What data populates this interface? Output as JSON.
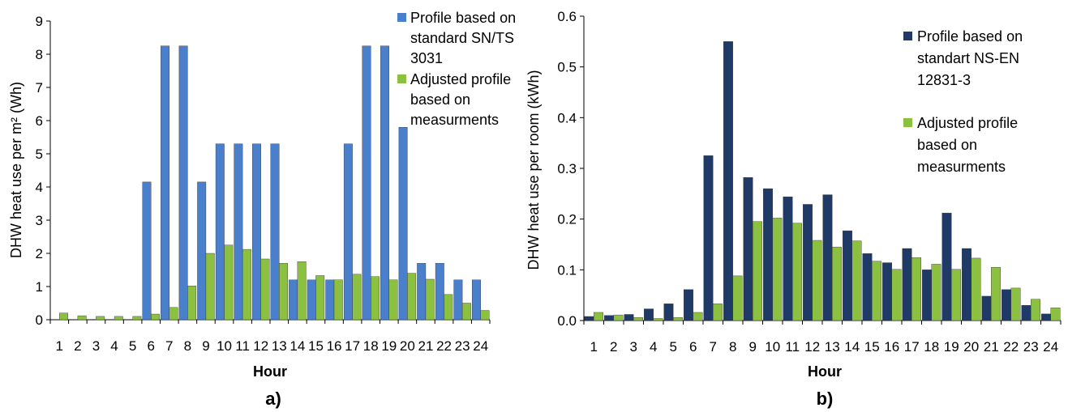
{
  "chart_data": [
    {
      "type": "bar",
      "caption": "a)",
      "ylabel": "DHW heat use per m² (Wh)",
      "xlabel": "Hour",
      "ylim": [
        0,
        9
      ],
      "yticks": [
        0,
        1,
        2,
        3,
        4,
        5,
        6,
        7,
        8,
        9
      ],
      "categories": [
        "1",
        "2",
        "3",
        "4",
        "5",
        "6",
        "7",
        "8",
        "9",
        "10",
        "11",
        "12",
        "13",
        "14",
        "15",
        "16",
        "17",
        "18",
        "19",
        "20",
        "21",
        "22",
        "23",
        "24"
      ],
      "series": [
        {
          "name": "Profile based on standard SN/TS 3031",
          "legend_lines": [
            "Profile based on",
            "standard SN/TS",
            "3031"
          ],
          "color": "#4a7fcc",
          "values": [
            0,
            0,
            0,
            0,
            0,
            4.15,
            8.25,
            8.25,
            4.15,
            5.3,
            5.3,
            5.3,
            5.3,
            1.2,
            1.2,
            1.2,
            5.3,
            8.25,
            8.25,
            5.8,
            1.7,
            1.7,
            1.2,
            1.2
          ]
        },
        {
          "name": "Adjusted profile based on measurments",
          "legend_lines": [
            "Adjusted profile",
            "based on",
            "measurments"
          ],
          "color": "#8cc040",
          "values": [
            0.2,
            0.12,
            0.1,
            0.1,
            0.1,
            0.17,
            0.37,
            1.02,
            2.0,
            2.25,
            2.12,
            1.83,
            1.7,
            1.75,
            1.33,
            1.2,
            1.37,
            1.3,
            1.2,
            1.4,
            1.22,
            0.76,
            0.5,
            0.28
          ]
        }
      ],
      "legend_position": "top-right",
      "grid": false
    },
    {
      "type": "bar",
      "caption": "b)",
      "ylabel": "DHW heat use per room (kWh)",
      "xlabel": "Hour",
      "ylim": [
        0,
        0.6
      ],
      "yticks": [
        0,
        0.1,
        0.2,
        0.3,
        0.4,
        0.5,
        0.6
      ],
      "categories": [
        "1",
        "2",
        "3",
        "4",
        "5",
        "6",
        "7",
        "8",
        "9",
        "10",
        "11",
        "12",
        "13",
        "14",
        "15",
        "16",
        "17",
        "18",
        "19",
        "20",
        "21",
        "22",
        "23",
        "24"
      ],
      "series": [
        {
          "name": "Profile based on standart NS-EN 12831-3",
          "legend_lines": [
            "Profile based on",
            "standart NS-EN",
            "12831-3"
          ],
          "color": "#1f3a66",
          "values": [
            0.008,
            0.01,
            0.012,
            0.023,
            0.033,
            0.061,
            0.325,
            0.55,
            0.282,
            0.26,
            0.244,
            0.229,
            0.248,
            0.177,
            0.132,
            0.114,
            0.142,
            0.1,
            0.212,
            0.142,
            0.048,
            0.061,
            0.03,
            0.013
          ]
        },
        {
          "name": "Adjusted profile based on measurments",
          "legend_lines": [
            "Adjusted profile",
            "based on",
            "measurments"
          ],
          "color": "#8cc040",
          "values": [
            0.016,
            0.011,
            0.006,
            0.004,
            0.006,
            0.016,
            0.033,
            0.088,
            0.195,
            0.202,
            0.192,
            0.158,
            0.145,
            0.157,
            0.117,
            0.101,
            0.124,
            0.111,
            0.101,
            0.123,
            0.105,
            0.064,
            0.042,
            0.025
          ]
        }
      ],
      "legend_position": "top-right",
      "grid": false
    }
  ]
}
